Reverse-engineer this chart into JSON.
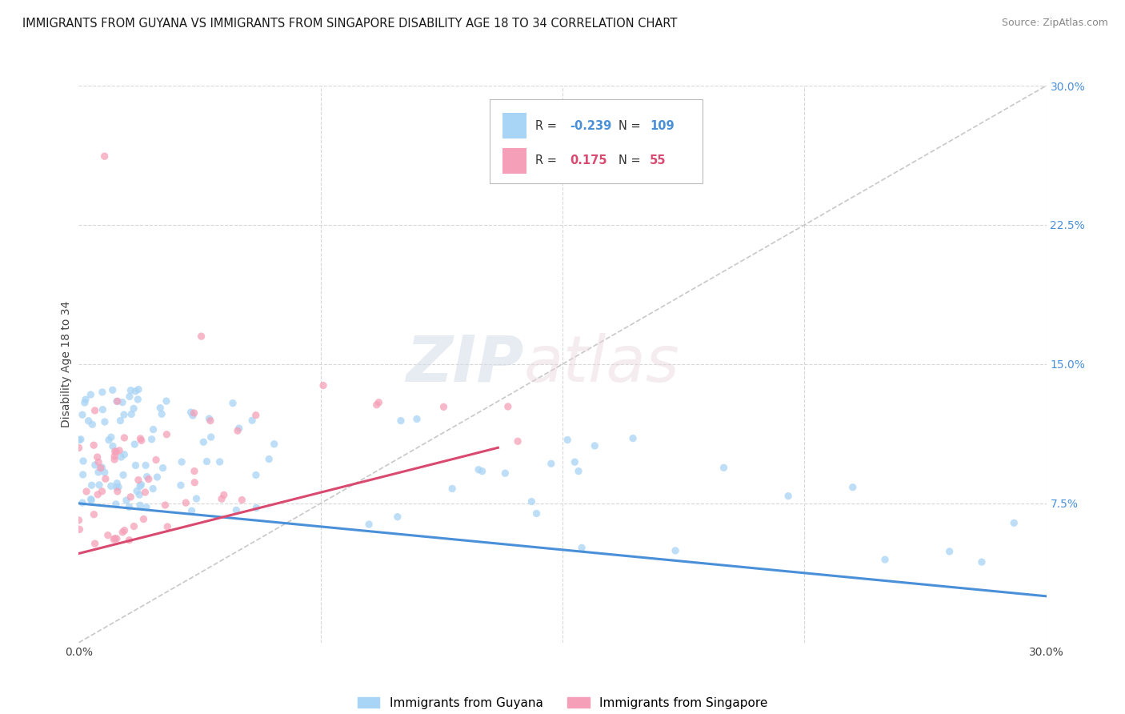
{
  "title": "IMMIGRANTS FROM GUYANA VS IMMIGRANTS FROM SINGAPORE DISABILITY AGE 18 TO 34 CORRELATION CHART",
  "source": "Source: ZipAtlas.com",
  "ylabel": "Disability Age 18 to 34",
  "watermark_zip": "ZIP",
  "watermark_atlas": "atlas",
  "xlim": [
    0.0,
    0.3
  ],
  "ylim": [
    0.0,
    0.3
  ],
  "guyana_color": "#a8d4f5",
  "singapore_color": "#f5a0b8",
  "guyana_line_color": "#4a90d9",
  "singapore_line_color": "#d94a70",
  "diagonal_color": "#c8c8c8",
  "grid_color": "#d8d8d8",
  "background_color": "#ffffff",
  "r_guyana": "-0.239",
  "n_guyana": "109",
  "r_singapore": "0.175",
  "n_singapore": "55",
  "legend_label_guyana": "Immigrants from Guyana",
  "legend_label_singapore": "Immigrants from Singapore",
  "guyana_trend_x": [
    0.0,
    0.3
  ],
  "guyana_trend_y": [
    0.075,
    0.025
  ],
  "singapore_trend_x": [
    0.0,
    0.13
  ],
  "singapore_trend_y": [
    0.048,
    0.105
  ]
}
